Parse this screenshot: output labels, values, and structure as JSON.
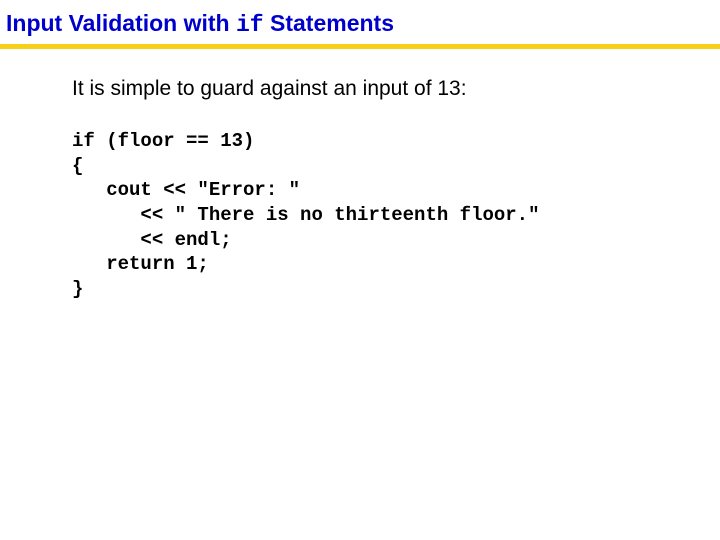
{
  "title": {
    "part1": "Input Validation with ",
    "code": "if",
    "part2": " Statements"
  },
  "intro": "It is simple to guard against an input of 13:",
  "code_lines": {
    "l1": "if (floor == 13)",
    "l2": "{",
    "l3": "   cout << \"Error: \"",
    "l4": "      << \" There is no thirteenth floor.\"",
    "l5": "      << endl;",
    "l6": "   return 1;",
    "l7": "}"
  },
  "colors": {
    "title_color": "#0000cc",
    "underline_color": "#f7d117",
    "text_color": "#000000",
    "background": "#ffffff"
  }
}
